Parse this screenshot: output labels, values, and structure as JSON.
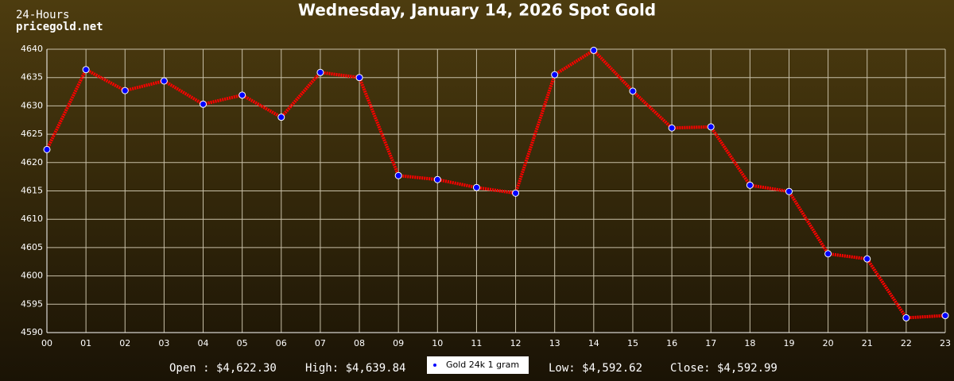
{
  "chart_data": {
    "type": "line",
    "title": "Wednesday, January 14, 2026 Spot Gold",
    "corner_texts": [
      "24-Hours",
      "pricegold.net"
    ],
    "categories": [
      "00",
      "01",
      "02",
      "03",
      "04",
      "05",
      "06",
      "07",
      "08",
      "09",
      "10",
      "11",
      "12",
      "13",
      "14",
      "15",
      "16",
      "17",
      "18",
      "19",
      "20",
      "21",
      "22",
      "23"
    ],
    "series": [
      {
        "name": "Gold 24k 1 gram",
        "color": "#ff0000",
        "marker_color": "#0000ff",
        "values": [
          4622.3,
          4636.4,
          4632.7,
          4634.4,
          4630.3,
          4631.9,
          4628.0,
          4635.9,
          4635.0,
          4617.7,
          4617.0,
          4615.6,
          4614.6,
          4635.5,
          4639.8,
          4632.6,
          4626.1,
          4626.3,
          4616.0,
          4614.9,
          4603.9,
          4603.0,
          4592.6,
          4593.0
        ]
      }
    ],
    "ylim": [
      4590,
      4640
    ],
    "yticks": [
      4590,
      4595,
      4600,
      4605,
      4610,
      4615,
      4620,
      4625,
      4630,
      4635,
      4640
    ],
    "grid": true,
    "stats_left": [
      "Open : $4,622.30",
      "High: $4,639.84"
    ],
    "stats_right": [
      "Low: $4,592.62",
      "Close: $4,592.99"
    ]
  }
}
